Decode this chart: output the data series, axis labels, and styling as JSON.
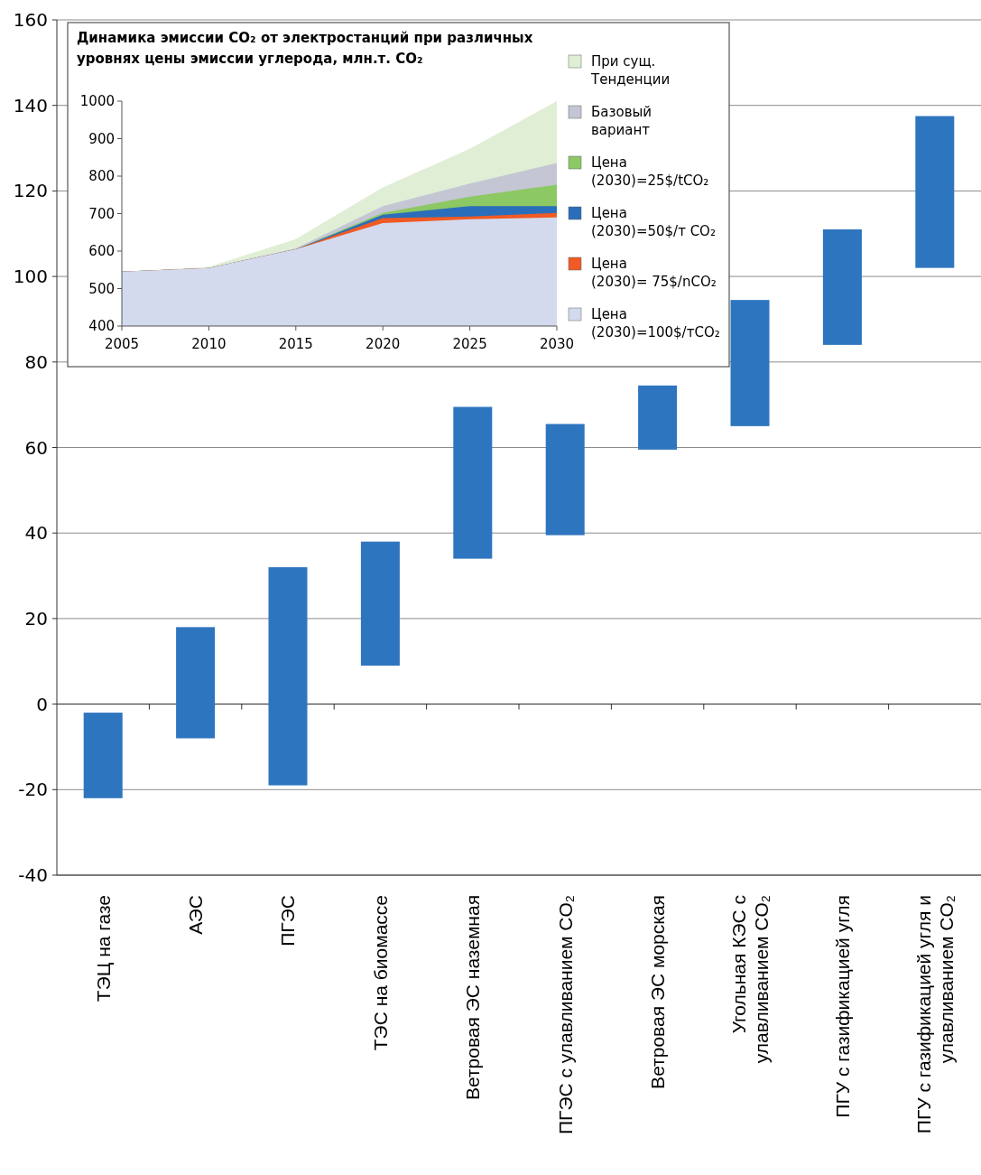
{
  "chart_data": [
    {
      "type": "bar",
      "categories": [
        "ТЭЦ на газе",
        "АЭС",
        "ПГЭС",
        "ТЭС на биомассе",
        "Ветровая ЭС наземная",
        "ПГЭС с улавливанием CO₂",
        "Ветровая ЭС морская",
        "Угольная КЭС с улавливанием CO₂",
        "ПГУ с газификацией угля",
        "ПГУ с газификацией угля и улавливанием CO₂"
      ],
      "values": [
        20,
        26,
        51,
        29,
        35.5,
        26,
        15,
        29.5,
        27,
        35.5
      ],
      "base": [
        -22,
        -8,
        -19,
        9,
        34,
        39.5,
        59.5,
        65,
        84,
        102
      ],
      "color": "#2e75bf",
      "ylim": [
        -40,
        160
      ],
      "yticks": [
        -40,
        -20,
        0,
        20,
        40,
        60,
        80,
        100,
        120,
        140,
        160
      ],
      "grid": "y"
    },
    {
      "type": "area",
      "title": "Динамика эмиссии CO₂ от электростанций при различных уровнях цены эмиссии углерода, млн.т. CO₂",
      "x": [
        2005,
        2010,
        2015,
        2020,
        2025,
        2030
      ],
      "series": [
        {
          "name": "Цена (2030)=100$/тCO₂",
          "color": "#d3daee",
          "values": [
            545,
            555,
            605,
            675,
            685,
            690
          ]
        },
        {
          "name": "Цена (2030)= 75$/nCO₂",
          "color": "#f05a24",
          "values": [
            545,
            555,
            605,
            688,
            692,
            702
          ]
        },
        {
          "name": "Цена (2030)=50$/т CO₂",
          "color": "#2a6ebb",
          "values": [
            545,
            555,
            605,
            697,
            720,
            720
          ]
        },
        {
          "name": "Цена (2030)=25$/tCO₂",
          "color": "#8cc863",
          "values": [
            545,
            555,
            605,
            702,
            745,
            777
          ]
        },
        {
          "name": "Базовый вариант",
          "color": "#c4c6d4",
          "values": [
            545,
            555,
            607,
            720,
            780,
            835
          ]
        },
        {
          "name": "При сущ. Тенденции",
          "color": "#e0eed5",
          "values": [
            545,
            558,
            632,
            770,
            873,
            1000
          ]
        }
      ],
      "xlim": [
        2005,
        2030
      ],
      "xticks": [
        2005,
        2010,
        2015,
        2020,
        2025,
        2030
      ],
      "ylim": [
        400,
        1000
      ],
      "yticks": [
        400,
        500,
        600,
        700,
        800,
        900,
        1000
      ],
      "legend": "right"
    }
  ]
}
